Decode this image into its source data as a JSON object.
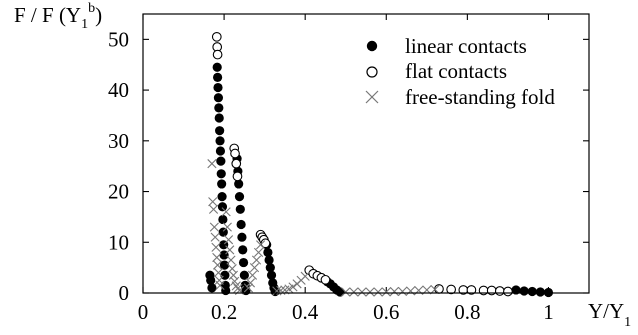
{
  "chart_data": {
    "type": "scatter",
    "ylabel": {
      "base": "F / F (Y",
      "sub": "1",
      "sup": "b",
      "close": ")"
    },
    "xlabel": {
      "base": "Y/Y",
      "sub": "1"
    },
    "xlim": [
      0,
      1.1
    ],
    "ylim": [
      0,
      55
    ],
    "x_ticks": [
      "0",
      "0.2",
      "0.4",
      "0.6",
      "0.8",
      "1"
    ],
    "x_tick_values": [
      0,
      0.2,
      0.4,
      0.6,
      0.8,
      1.0
    ],
    "y_ticks": [
      "0",
      "10",
      "20",
      "30",
      "40",
      "50"
    ],
    "y_tick_values": [
      0,
      10,
      20,
      30,
      40,
      50
    ],
    "legend_position": "top-right",
    "series": [
      {
        "name": "linear contacts",
        "marker": "filled-circle",
        "points": [
          [
            0.165,
            3.5
          ],
          [
            0.167,
            2.5
          ],
          [
            0.17,
            1.0
          ],
          [
            0.183,
            44.5
          ],
          [
            0.184,
            42.5
          ],
          [
            0.185,
            40.5
          ],
          [
            0.186,
            38.5
          ],
          [
            0.187,
            36.5
          ],
          [
            0.188,
            34.5
          ],
          [
            0.189,
            32.0
          ],
          [
            0.19,
            30.0
          ],
          [
            0.191,
            28.0
          ],
          [
            0.192,
            26.0
          ],
          [
            0.193,
            23.5
          ],
          [
            0.194,
            21.5
          ],
          [
            0.195,
            19.0
          ],
          [
            0.196,
            17.0
          ],
          [
            0.197,
            14.5
          ],
          [
            0.198,
            12.0
          ],
          [
            0.199,
            9.5
          ],
          [
            0.2,
            7.5
          ],
          [
            0.201,
            5.5
          ],
          [
            0.202,
            3.5
          ],
          [
            0.203,
            1.5
          ],
          [
            0.204,
            0.5
          ],
          [
            0.232,
            26.5
          ],
          [
            0.234,
            24.0
          ],
          [
            0.236,
            21.5
          ],
          [
            0.238,
            19.0
          ],
          [
            0.24,
            16.5
          ],
          [
            0.242,
            13.5
          ],
          [
            0.244,
            11.0
          ],
          [
            0.246,
            8.5
          ],
          [
            0.248,
            6.0
          ],
          [
            0.25,
            3.5
          ],
          [
            0.252,
            1.5
          ],
          [
            0.254,
            0.5
          ],
          [
            0.305,
            9.5
          ],
          [
            0.308,
            8.0
          ],
          [
            0.311,
            6.5
          ],
          [
            0.314,
            5.0
          ],
          [
            0.317,
            3.5
          ],
          [
            0.32,
            2.0
          ],
          [
            0.323,
            1.0
          ],
          [
            0.326,
            0.3
          ],
          [
            0.455,
            2.2
          ],
          [
            0.462,
            1.8
          ],
          [
            0.47,
            1.2
          ],
          [
            0.478,
            0.6
          ],
          [
            0.486,
            0.2
          ],
          [
            0.92,
            0.6
          ],
          [
            0.94,
            0.4
          ],
          [
            0.96,
            0.3
          ],
          [
            0.98,
            0.2
          ],
          [
            1.0,
            0.1
          ]
        ]
      },
      {
        "name": "flat contacts",
        "marker": "open-circle",
        "points": [
          [
            0.182,
            50.5
          ],
          [
            0.183,
            48.5
          ],
          [
            0.184,
            47.0
          ],
          [
            0.225,
            28.5
          ],
          [
            0.227,
            27.5
          ],
          [
            0.23,
            25.5
          ],
          [
            0.233,
            23.0
          ],
          [
            0.29,
            11.5
          ],
          [
            0.294,
            11.0
          ],
          [
            0.298,
            10.5
          ],
          [
            0.302,
            9.8
          ],
          [
            0.41,
            4.5
          ],
          [
            0.42,
            3.8
          ],
          [
            0.43,
            3.4
          ],
          [
            0.44,
            3.0
          ],
          [
            0.45,
            2.6
          ],
          [
            0.73,
            0.8
          ],
          [
            0.76,
            0.7
          ],
          [
            0.79,
            0.6
          ],
          [
            0.81,
            0.6
          ],
          [
            0.84,
            0.5
          ],
          [
            0.86,
            0.5
          ],
          [
            0.88,
            0.4
          ],
          [
            0.9,
            0.3
          ]
        ]
      },
      {
        "name": "free-standing fold",
        "marker": "cross",
        "points": [
          [
            0.17,
            25.5
          ],
          [
            0.172,
            18.0
          ],
          [
            0.174,
            16.5
          ],
          [
            0.176,
            13.0
          ],
          [
            0.178,
            11.0
          ],
          [
            0.18,
            9.0
          ],
          [
            0.182,
            7.0
          ],
          [
            0.184,
            5.5
          ],
          [
            0.186,
            4.0
          ],
          [
            0.188,
            2.5
          ],
          [
            0.19,
            1.5
          ],
          [
            0.205,
            16.0
          ],
          [
            0.208,
            13.0
          ],
          [
            0.211,
            10.5
          ],
          [
            0.214,
            8.5
          ],
          [
            0.217,
            6.5
          ],
          [
            0.22,
            4.8
          ],
          [
            0.223,
            3.5
          ],
          [
            0.226,
            2.3
          ],
          [
            0.23,
            1.4
          ],
          [
            0.234,
            0.9
          ],
          [
            0.238,
            0.5
          ],
          [
            0.26,
            1.0
          ],
          [
            0.265,
            2.0
          ],
          [
            0.27,
            3.5
          ],
          [
            0.275,
            5.0
          ],
          [
            0.28,
            6.5
          ],
          [
            0.285,
            8.0
          ],
          [
            0.29,
            9.5
          ],
          [
            0.33,
            0.4
          ],
          [
            0.34,
            0.5
          ],
          [
            0.35,
            0.6
          ],
          [
            0.36,
            0.8
          ],
          [
            0.37,
            1.2
          ],
          [
            0.38,
            1.8
          ],
          [
            0.39,
            2.5
          ],
          [
            0.4,
            3.3
          ],
          [
            0.5,
            0.2
          ],
          [
            0.52,
            0.2
          ],
          [
            0.54,
            0.2
          ],
          [
            0.56,
            0.2
          ],
          [
            0.58,
            0.2
          ],
          [
            0.6,
            0.2
          ],
          [
            0.62,
            0.3
          ],
          [
            0.64,
            0.3
          ],
          [
            0.66,
            0.4
          ],
          [
            0.68,
            0.5
          ],
          [
            0.7,
            0.6
          ],
          [
            0.72,
            0.7
          ]
        ]
      }
    ]
  }
}
